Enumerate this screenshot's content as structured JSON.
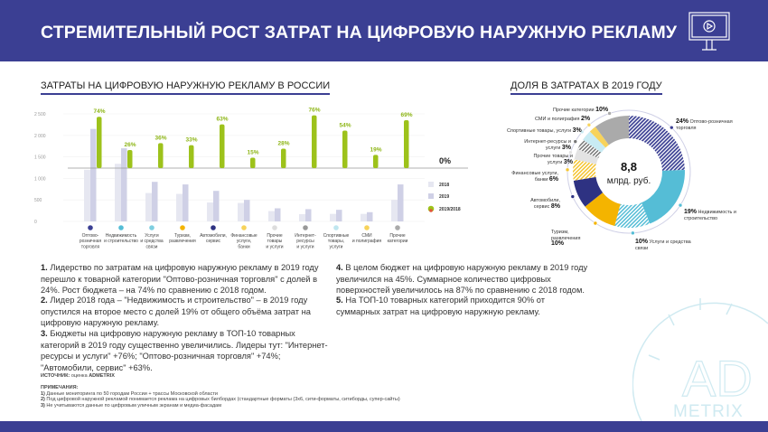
{
  "header": {
    "title": "СТРЕМИТЕЛЬНЫЙ РОСТ ЗАТРАТ НА ЦИФРОВУЮ НАРУЖНУЮ РЕКЛАМУ",
    "icon": "monitor-play-icon"
  },
  "chart_data": [
    {
      "type": "bar",
      "title": "ЗАТРАТЫ НА ЦИФРОВУЮ НАРУЖНУЮ РЕКЛАМУ В РОССИИ",
      "yticks": [
        "0",
        "500",
        "1 000",
        "1 500",
        "2 000",
        "2 500"
      ],
      "ylim": [
        0,
        2500
      ],
      "zero_growth_label": "0%",
      "categories": [
        "Оптово-розничная торговля",
        "Недвижимость и строительство",
        "Услуги и средства связи",
        "Туризм, развлечения",
        "Автомобили, сервис",
        "Финансовые услуги, банки",
        "Прочие товары и услуги",
        "Интернет-ресурсы и услуги",
        "Спортивные товары, услуги",
        "СМИ и полиграфия",
        "Прочие категории"
      ],
      "category_labels": [
        [
          "Оптово-",
          "розничная",
          "торговля"
        ],
        [
          "Недвижимость",
          "и строительство"
        ],
        [
          "Услуги",
          "и средства",
          "связи"
        ],
        [
          "Туризм,",
          "развлечения"
        ],
        [
          "Автомобили,",
          "сервис"
        ],
        [
          "Финансовые",
          "услуги,",
          "банки"
        ],
        [
          "Прочие",
          "товары",
          "и услуги"
        ],
        [
          "Интернет-",
          "ресурсы",
          "и услуги"
        ],
        [
          "Спортивные",
          "товары,",
          "услуги"
        ],
        [
          "СМИ",
          "и полиграфия"
        ],
        [
          "Прочие",
          "категории"
        ]
      ],
      "series": [
        {
          "name": "2018",
          "color": "#e6e7f1",
          "values": [
            1200,
            1340,
            660,
            640,
            440,
            430,
            240,
            170,
            175,
            175,
            500
          ]
        },
        {
          "name": "2019",
          "color": "#cfd0e6",
          "values": [
            2150,
            1700,
            920,
            860,
            710,
            500,
            305,
            285,
            270,
            215,
            860
          ]
        },
        {
          "name": "2019/2018",
          "color": "#9dc21b",
          "growth_labels": [
            "74%",
            "26%",
            "36%",
            "33%",
            "63%",
            "15%",
            "28%",
            "76%",
            "54%",
            "19%",
            "69%"
          ],
          "values": [
            74,
            26,
            36,
            33,
            63,
            15,
            28,
            76,
            54,
            19,
            69
          ]
        }
      ],
      "category_colors": [
        "#3b3f93",
        "#55bdd6",
        "#7fcfe0",
        "#f4b400",
        "#2e3282",
        "#f7d35b",
        "#dddddd",
        "#999999",
        "#bfe6ef",
        "#f7d35b",
        "#aaaaaa"
      ],
      "legend": [
        "2018",
        "2019",
        "2019/2018"
      ]
    },
    {
      "type": "pie",
      "title": "ДОЛЯ В ЗАТРАТАХ В 2019 ГОДУ",
      "center_value": "8,8",
      "center_unit": "млрд. руб.",
      "slices": [
        {
          "label": "Оптово-розничная торговля",
          "pct": "24%",
          "value": 24,
          "color": "#3b3f93",
          "hatch": true
        },
        {
          "label": "Недвижимость и строительство",
          "pct": "19%",
          "value": 19,
          "color": "#55bdd6",
          "hatch": false
        },
        {
          "label": "Услуги и средства связи",
          "pct": "10%",
          "value": 10,
          "color": "#55bdd6",
          "hatch": true
        },
        {
          "label": "Туризм, развлечения",
          "pct": "10%",
          "value": 10,
          "color": "#f4b400",
          "hatch": false
        },
        {
          "label": "Автомобили, сервис",
          "pct": "8%",
          "value": 8,
          "color": "#2e3282",
          "hatch": false
        },
        {
          "label": "Финансовые услуги, банки",
          "pct": "6%",
          "value": 6,
          "color": "#f4c430",
          "hatch": true
        },
        {
          "label": "Прочие товары и услуги",
          "pct": "3%",
          "value": 3,
          "color": "#e3e3e3",
          "hatch": false
        },
        {
          "label": "Интернет-ресурсы и услуги",
          "pct": "3%",
          "value": 3,
          "color": "#777777",
          "hatch": true
        },
        {
          "label": "Спортивные товары, услуги",
          "pct": "3%",
          "value": 3,
          "color": "#c8ebf3",
          "hatch": false
        },
        {
          "label": "СМИ и полиграфия",
          "pct": "2%",
          "value": 2,
          "color": "#f7d35b",
          "hatch": false
        },
        {
          "label": "Прочие категории",
          "pct": "10%",
          "value": 10,
          "color": "#aaaaaa",
          "hatch": false
        }
      ]
    }
  ],
  "notes": [
    {
      "num": "1.",
      "text": "Лидерство по затратам на цифровую наружную рекламу в 2019 году перешло к товарной категории \"Оптово-розничная торговля\" с долей в 24%. Рост бюджета – на 74% по сравнению с 2018 годом."
    },
    {
      "num": "2.",
      "text": "Лидер 2018 года – \"Недвижимость и строительство\" – в 2019 году опустился на второе место с долей 19% от общего объёма затрат на цифровую наружную рекламу."
    },
    {
      "num": "3.",
      "text": "Бюджеты на цифровую наружную рекламу в ТОП-10 товарных категорий в 2019 году существенно увеличились. Лидеры тут: \"Интернет-ресурсы и услуги\" +76%; \"Оптово-розничная торговля\" +74%; \"Автомобили, сервис\" +63%."
    },
    {
      "num": "4.",
      "text": "В целом бюджет на цифровую наружную рекламу в 2019 году увеличился на 45%. Суммарное количество цифровых поверхностей увеличилось на 87% по сравнению с 2018 годом."
    },
    {
      "num": "5.",
      "text": "На ТОП-10 товарных категорий приходится 90% от суммарных затрат на цифровую наружную рекламу."
    }
  ],
  "source": {
    "label": "ИСТОЧНИК:",
    "text": "оценка",
    "brand": "ADMETRIX"
  },
  "remarks": {
    "label": "ПРИМЕЧАНИЯ:",
    "items": [
      {
        "num": "1)",
        "text": "Данные мониторинга по 50 городам России + трассы Московской области"
      },
      {
        "num": "2)",
        "text": "Под цифровой наружной рекламой понимается реклама на цифровых билбордах (стандартные форматы (3х6, сити-форматы, ситиборды, супер-сайты)"
      },
      {
        "num": "3)",
        "text": "Не учитываются данные по цифровым уличным экранам и медиа-фасадам"
      }
    ]
  },
  "watermark": {
    "big": "AD",
    "small": "METRIX"
  }
}
